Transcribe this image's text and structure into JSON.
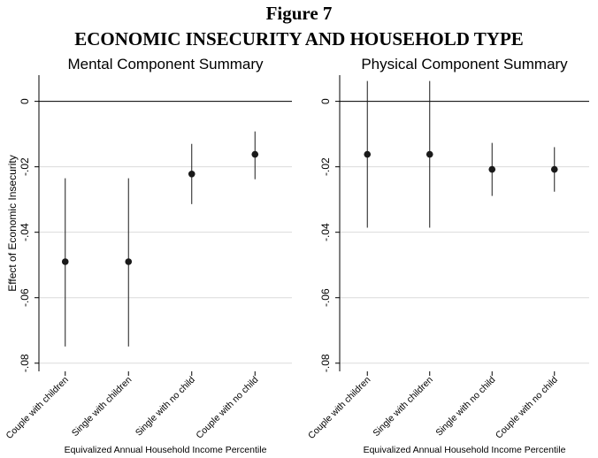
{
  "header": {
    "figure": "Figure 7",
    "title": "ECONOMIC INSECURITY AND HOUSEHOLD TYPE"
  },
  "chart_data": [
    {
      "type": "dot-whisker",
      "title": "Mental Component Summary",
      "ylabel": "Effect of Economic Insecurity",
      "xlabel": "Equivalized Annual Household Income Percentile",
      "categories": [
        "Couple with children",
        "Single with children",
        "Single with no child",
        "Couple with no child"
      ],
      "values": [
        -0.049,
        -0.049,
        -0.0222,
        -0.0162
      ],
      "lower": [
        -0.0749,
        -0.0749,
        -0.0314,
        -0.0238
      ],
      "upper": [
        -0.0235,
        -0.0235,
        -0.013,
        -0.0092
      ],
      "color": "#1a1a1a",
      "ylim": [
        -0.0825,
        0.008
      ],
      "yticks": [
        0,
        {
          "value": -0.02,
          "label": "-.02"
        },
        {
          "value": -0.04,
          "label": "-.04"
        },
        {
          "value": -0.06,
          "label": "-.06"
        },
        {
          "value": -0.08,
          "label": "-.08"
        }
      ],
      "reference_line": 0,
      "grid": true
    },
    {
      "type": "dot-whisker",
      "title": "Physical Component Summary",
      "xlabel": "Equivalized Annual Household Income Percentile",
      "categories": [
        "Couple with children",
        "Single with children",
        "Single with no child",
        "Couple with no child"
      ],
      "values": [
        -0.0162,
        -0.0162,
        -0.0208,
        -0.0208
      ],
      "lower": [
        -0.0386,
        -0.0386,
        -0.0289,
        -0.0276
      ],
      "upper": [
        0.0062,
        0.0062,
        -0.0127,
        -0.014
      ],
      "color": "#1a1a1a",
      "ylim": [
        -0.0825,
        0.008
      ],
      "yticks": [
        0,
        {
          "value": -0.02,
          "label": "-.02"
        },
        {
          "value": -0.04,
          "label": "-.04"
        },
        {
          "value": -0.06,
          "label": "-.06"
        },
        {
          "value": -0.08,
          "label": "-.08"
        }
      ],
      "reference_line": 0,
      "grid": true
    }
  ]
}
